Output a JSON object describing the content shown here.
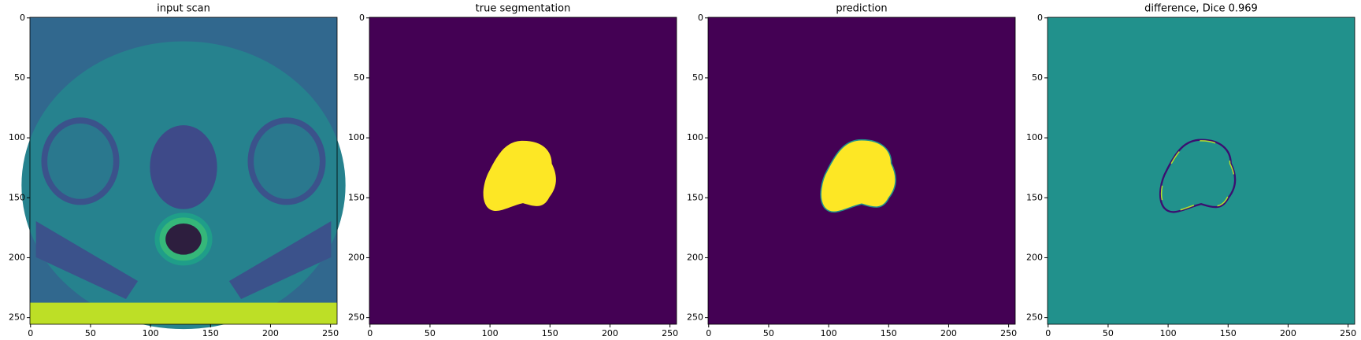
{
  "chart_data": [
    {
      "type": "image",
      "title": "input scan",
      "xlim": [
        -0.5,
        255.5
      ],
      "ylim": [
        255.5,
        -0.5
      ],
      "xticks": [
        0,
        50,
        100,
        150,
        200,
        250
      ],
      "yticks": [
        0,
        50,
        100,
        150,
        200,
        250
      ]
    },
    {
      "type": "image",
      "title": "true segmentation",
      "xlim": [
        -0.5,
        255.5
      ],
      "ylim": [
        255.5,
        -0.5
      ],
      "xticks": [
        0,
        50,
        100,
        150,
        200,
        250
      ],
      "yticks": [
        0,
        50,
        100,
        150,
        200,
        250
      ]
    },
    {
      "type": "image",
      "title": "prediction",
      "xlim": [
        -0.5,
        255.5
      ],
      "ylim": [
        255.5,
        -0.5
      ],
      "xticks": [
        0,
        50,
        100,
        150,
        200,
        250
      ],
      "yticks": [
        0,
        50,
        100,
        150,
        200,
        250
      ]
    },
    {
      "type": "image",
      "title": "difference, Dice 0.969",
      "xlim": [
        -0.5,
        255.5
      ],
      "ylim": [
        255.5,
        -0.5
      ],
      "xticks": [
        0,
        50,
        100,
        150,
        200,
        250
      ],
      "yticks": [
        0,
        50,
        100,
        150,
        200,
        250
      ]
    }
  ]
}
